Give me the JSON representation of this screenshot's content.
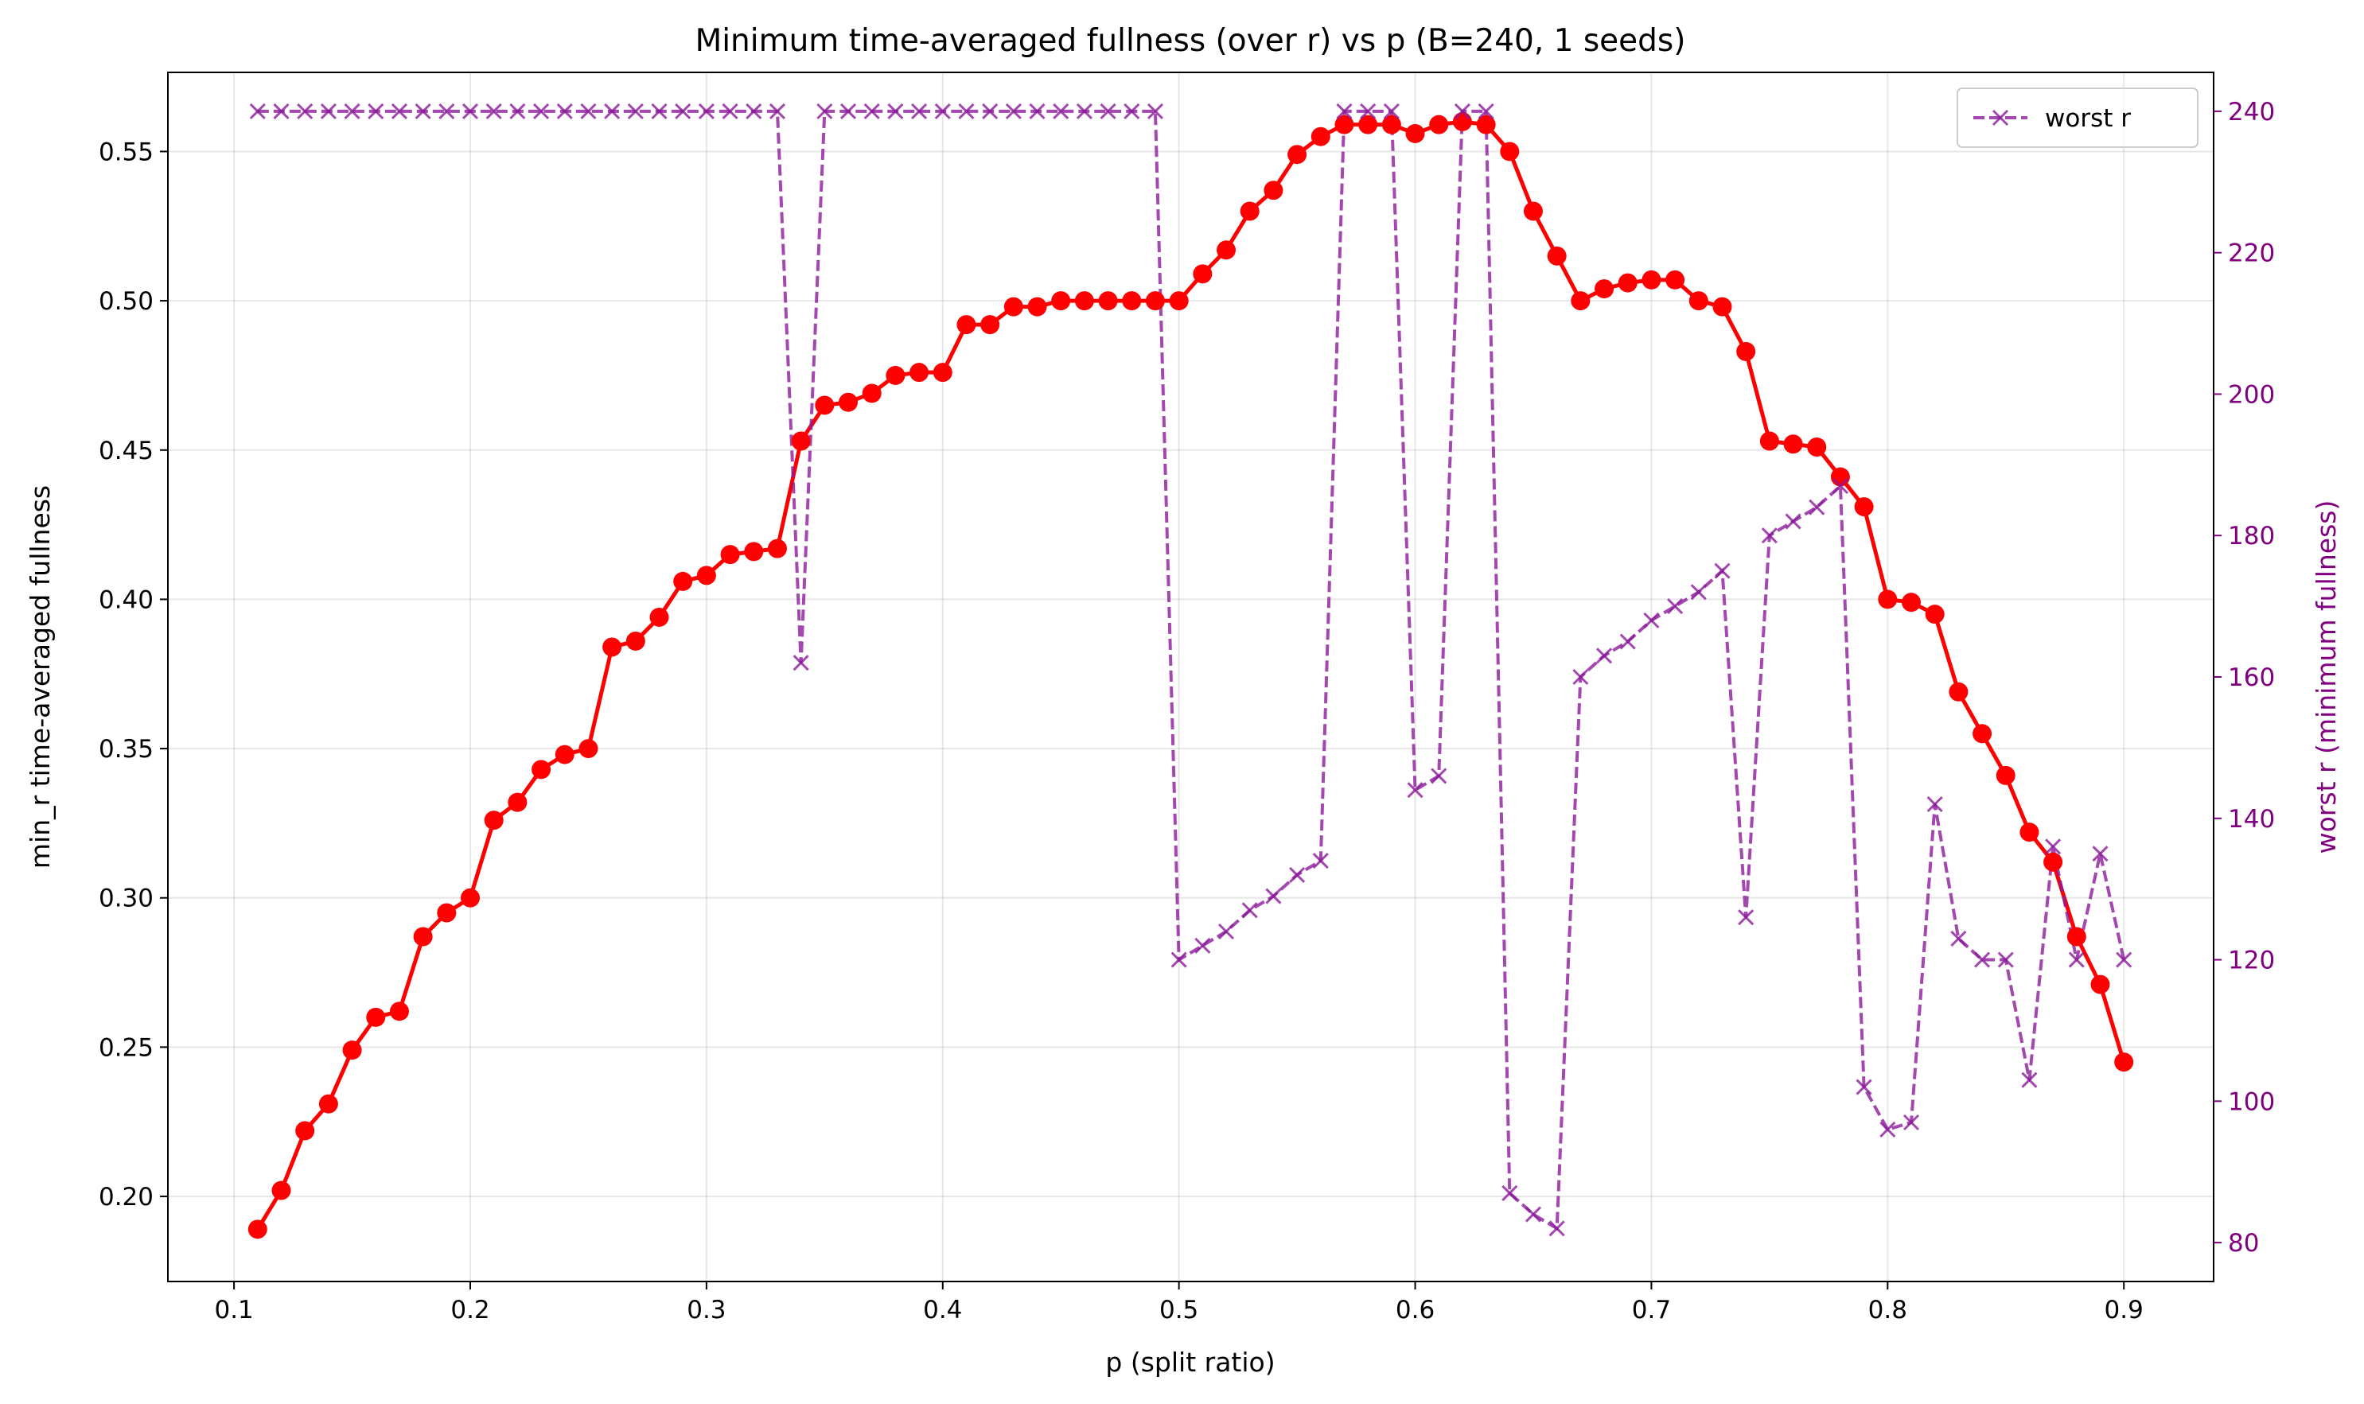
{
  "chart_data": {
    "type": "line",
    "title": "Minimum time-averaged fullness (over r) vs p (B=240, 1 seeds)",
    "xlabel": "p (split ratio)",
    "ylabel": "min_r time-averaged fullness",
    "ylabel_right": "worst r (minimum fullness)",
    "xlim": [
      0.072,
      0.938
    ],
    "ylim": [
      0.1715,
      0.5765
    ],
    "ylim_right": [
      74.5,
      245.5
    ],
    "xticks": [
      0.1,
      0.2,
      0.3,
      0.4,
      0.5,
      0.6,
      0.7,
      0.8,
      0.9
    ],
    "xtick_labels": [
      "0.1",
      "0.2",
      "0.3",
      "0.4",
      "0.5",
      "0.6",
      "0.7",
      "0.8",
      "0.9"
    ],
    "yticks": [
      0.2,
      0.25,
      0.3,
      0.35,
      0.4,
      0.45,
      0.5,
      0.55
    ],
    "ytick_labels": [
      "0.20",
      "0.25",
      "0.30",
      "0.35",
      "0.40",
      "0.45",
      "0.50",
      "0.55"
    ],
    "yticks_right": [
      80,
      100,
      120,
      140,
      160,
      180,
      200,
      220,
      240
    ],
    "ytick_labels_right": [
      "80",
      "100",
      "120",
      "140",
      "160",
      "180",
      "200",
      "220",
      "240"
    ],
    "grid": true,
    "legend_position": "top-right",
    "x": [
      0.11,
      0.12,
      0.13,
      0.14,
      0.15,
      0.16,
      0.17,
      0.18,
      0.19,
      0.2,
      0.21,
      0.22,
      0.23,
      0.24,
      0.25,
      0.26,
      0.27,
      0.28,
      0.29,
      0.3,
      0.31,
      0.32,
      0.33,
      0.34,
      0.35,
      0.36,
      0.37,
      0.38,
      0.39,
      0.4,
      0.41,
      0.42,
      0.43,
      0.44,
      0.45,
      0.46,
      0.47,
      0.48,
      0.49,
      0.5,
      0.51,
      0.52,
      0.53,
      0.54,
      0.55,
      0.56,
      0.57,
      0.58,
      0.59,
      0.6,
      0.61,
      0.62,
      0.63,
      0.64,
      0.65,
      0.66,
      0.67,
      0.68,
      0.69,
      0.7,
      0.71,
      0.72,
      0.73,
      0.74,
      0.75,
      0.76,
      0.77,
      0.78,
      0.79,
      0.8,
      0.81,
      0.82,
      0.83,
      0.84,
      0.85,
      0.86,
      0.87,
      0.88,
      0.89,
      0.9
    ],
    "series": [
      {
        "axis": "left",
        "color": "#ff0000",
        "style": "solid-circle",
        "values": [
          0.189,
          0.202,
          0.222,
          0.231,
          0.249,
          0.26,
          0.262,
          0.287,
          0.295,
          0.3,
          0.326,
          0.332,
          0.343,
          0.348,
          0.35,
          0.384,
          0.386,
          0.394,
          0.406,
          0.408,
          0.415,
          0.416,
          0.417,
          0.453,
          0.465,
          0.466,
          0.469,
          0.475,
          0.476,
          0.476,
          0.492,
          0.492,
          0.498,
          0.498,
          0.5,
          0.5,
          0.5,
          0.5,
          0.5,
          0.5,
          0.509,
          0.517,
          0.53,
          0.537,
          0.549,
          0.555,
          0.559,
          0.559,
          0.559,
          0.556,
          0.559,
          0.56,
          0.559,
          0.55,
          0.53,
          0.515,
          0.5,
          0.504,
          0.506,
          0.507,
          0.507,
          0.5,
          0.498,
          0.483,
          0.453,
          0.452,
          0.451,
          0.441,
          0.431,
          0.4,
          0.399,
          0.395,
          0.369,
          0.355,
          0.341,
          0.322,
          0.312,
          0.287,
          0.271,
          0.245
        ]
      },
      {
        "name": "worst r",
        "axis": "right",
        "color": "#8b1a9a",
        "style": "dashed-x",
        "values": [
          240,
          240,
          240,
          240,
          240,
          240,
          240,
          240,
          240,
          240,
          240,
          240,
          240,
          240,
          240,
          240,
          240,
          240,
          240,
          240,
          240,
          240,
          240,
          162,
          240,
          240,
          240,
          240,
          240,
          240,
          240,
          240,
          240,
          240,
          240,
          240,
          240,
          240,
          240,
          120,
          122,
          124,
          127,
          129,
          132,
          134,
          240,
          240,
          240,
          144,
          146,
          240,
          240,
          87,
          84,
          82,
          160,
          163,
          165,
          168,
          170,
          172,
          175,
          126,
          180,
          182,
          184,
          187,
          102,
          96,
          97,
          142,
          123,
          120,
          120,
          103,
          136,
          120,
          135,
          120
        ]
      }
    ]
  }
}
